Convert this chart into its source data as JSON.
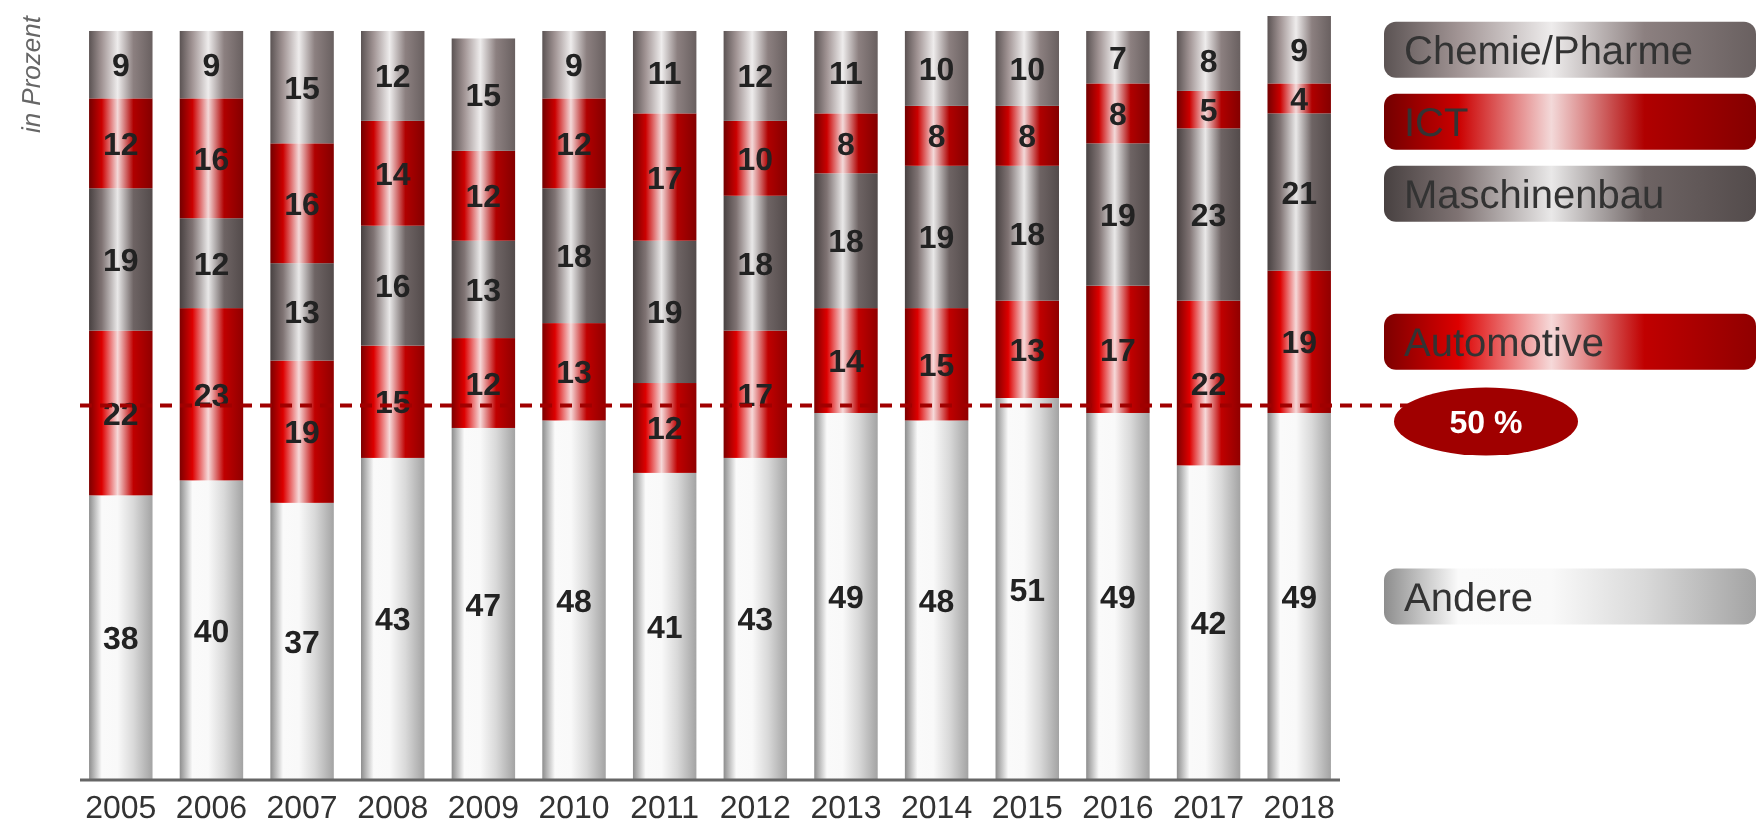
{
  "chart_data": {
    "type": "bar",
    "stacked": true,
    "data_labels": true,
    "legend": "right",
    "ylabel": "in Prozent",
    "categories": [
      "2005",
      "2006",
      "2007",
      "2008",
      "2009",
      "2010",
      "2011",
      "2012",
      "2013",
      "2014",
      "2015",
      "2016",
      "2017",
      "2018"
    ],
    "series": [
      {
        "name": "Andere",
        "color": "#d9d9d9",
        "values": [
          38,
          40,
          37,
          43,
          47,
          48,
          41,
          43,
          49,
          48,
          51,
          49,
          42,
          49
        ]
      },
      {
        "name": "Automotive",
        "color": "#c00000",
        "values": [
          22,
          23,
          19,
          15,
          12,
          13,
          12,
          17,
          14,
          15,
          13,
          17,
          22,
          19
        ]
      },
      {
        "name": "Maschinenbau",
        "color": "#6e6464",
        "values": [
          19,
          12,
          13,
          16,
          13,
          18,
          19,
          18,
          18,
          19,
          18,
          19,
          23,
          21
        ]
      },
      {
        "name": "ICT",
        "color": "#b00000",
        "values": [
          12,
          16,
          16,
          14,
          12,
          12,
          17,
          10,
          8,
          8,
          8,
          8,
          5,
          4
        ]
      },
      {
        "name": "Chemie/Pharme",
        "color": "#8c8080",
        "values": [
          9,
          9,
          15,
          12,
          15,
          9,
          11,
          12,
          11,
          10,
          10,
          7,
          8,
          9
        ]
      }
    ],
    "ref_lines": [
      {
        "axis": "y",
        "value": 50,
        "label": "50 %",
        "color": "#a00000",
        "line_style": "dashed"
      }
    ]
  }
}
